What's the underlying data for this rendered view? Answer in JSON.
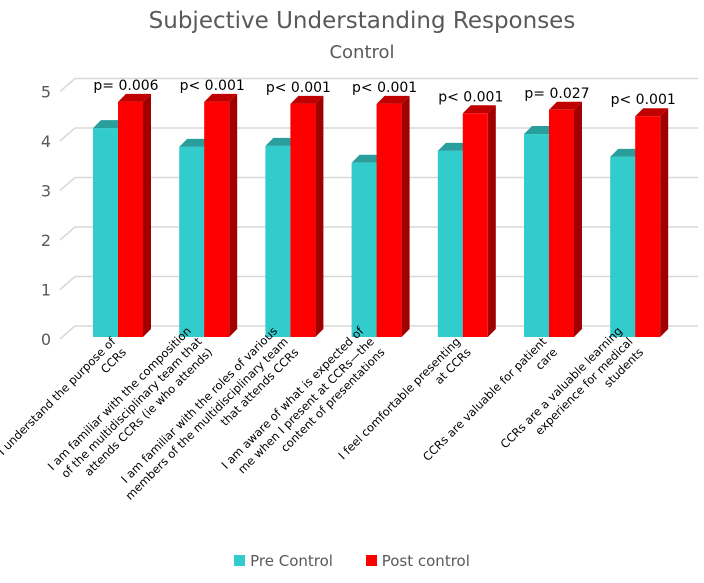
{
  "chart_data": {
    "type": "bar",
    "title": "Subjective Understanding Responses",
    "subtitle": "Control",
    "xlabel": "",
    "ylabel": "",
    "ylim": [
      0,
      5
    ],
    "yticks": [
      "0",
      "1",
      "2",
      "3",
      "4",
      "5"
    ],
    "grid": true,
    "legend_position": "bottom",
    "categories": [
      [
        "I understand the purpose of",
        "CCRs"
      ],
      [
        "I am familiar with the composition",
        "of the multidisciplinary team that",
        "attends CCRs (ie who attends)"
      ],
      [
        "I am familiar with the roles of various",
        "members of the multidisciplinary team",
        "that attends CCRs"
      ],
      [
        "I am aware of what is expected of",
        "me when I present at CCRs—the",
        "content of presentations"
      ],
      [
        "I feel comfortable presenting",
        "at CCRs"
      ],
      [
        "CCRs are valuable for patient",
        "care"
      ],
      [
        "CCRs are a valuable learning",
        "experience for medical",
        "students"
      ]
    ],
    "series": [
      {
        "name": "Pre Control",
        "color": "#33CCCC",
        "values": [
          4.22,
          3.84,
          3.86,
          3.52,
          3.76,
          4.1,
          3.64
        ]
      },
      {
        "name": "Post control",
        "color": "#FF0000",
        "values": [
          4.75,
          4.75,
          4.71,
          4.71,
          4.52,
          4.59,
          4.46
        ]
      }
    ],
    "annotations": [
      "p= 0.006",
      "p< 0.001",
      "p< 0.001",
      "p< 0.001",
      "p< 0.001",
      "p= 0.027",
      "p< 0.001"
    ]
  }
}
